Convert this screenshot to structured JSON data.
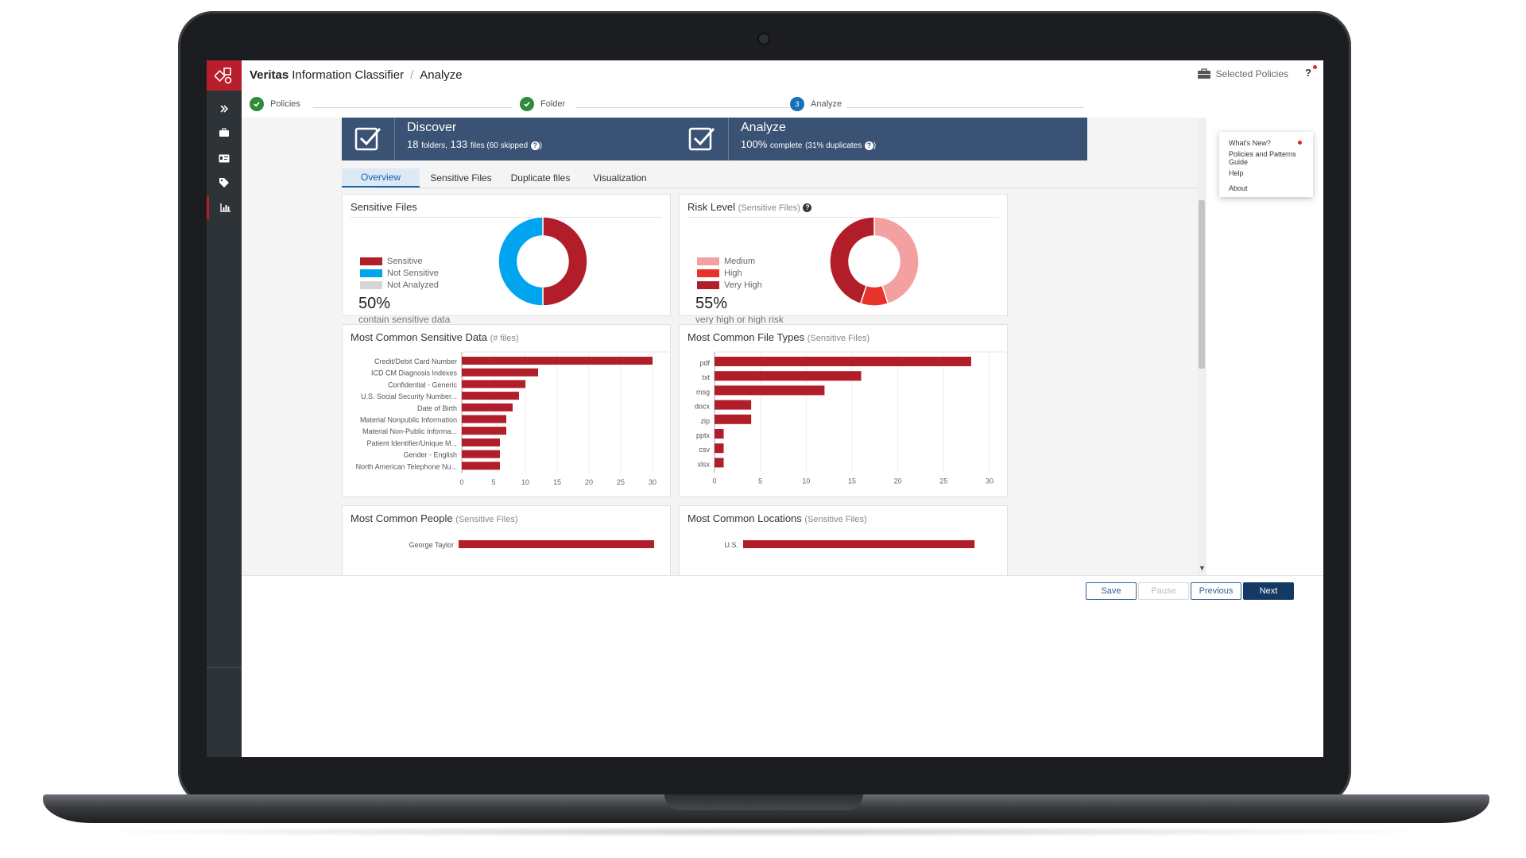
{
  "app": {
    "brand": "Veritas",
    "product": "Information Classifier",
    "breadcrumb_sep": "/",
    "page": "Analyze",
    "selected_policies": "Selected Policies",
    "help_glyph": "?"
  },
  "stepper": {
    "steps": [
      {
        "label": "Policies",
        "state": "done"
      },
      {
        "label": "Folder",
        "state": "done"
      },
      {
        "label": "Analyze",
        "state": "current",
        "number": "3"
      }
    ]
  },
  "help_menu": {
    "items": [
      "What's New?",
      "Policies and Patterns Guide",
      "Help",
      "About"
    ]
  },
  "discover": {
    "title": "Discover",
    "folders": "18",
    "folders_label": "folders,",
    "files": "133",
    "files_label": "files (60 skipped",
    "q": "?",
    "close": ")"
  },
  "analyze_card": {
    "title": "Analyze",
    "percent": "100%",
    "complete_label": "complete",
    "dup_label": "(31% duplicates",
    "q": "?",
    "close": ")"
  },
  "tabs": [
    "Overview",
    "Sensitive Files",
    "Duplicate files",
    "Visualization"
  ],
  "panels": {
    "sensitive": {
      "title": "Sensitive Files",
      "legend": [
        "Sensitive",
        "Not Sensitive",
        "Not Analyzed"
      ],
      "pct": "50%",
      "caption": "contain sensitive data"
    },
    "risk": {
      "title": "Risk Level",
      "subtitle": "(Sensitive Files)",
      "q": "?",
      "legend": [
        "Medium",
        "High",
        "Very High"
      ],
      "pct": "55%",
      "caption": "very high or high risk"
    },
    "common_data": {
      "title": "Most Common Sensitive Data",
      "subtitle": "(# files)"
    },
    "file_types": {
      "title": "Most Common File Types",
      "subtitle": "(Sensitive Files)"
    },
    "people": {
      "title": "Most Common People",
      "subtitle": "(Sensitive Files)"
    },
    "locations": {
      "title": "Most Common Locations",
      "subtitle": "(Sensitive Files)"
    }
  },
  "footer": {
    "save": "Save",
    "pause": "Pause",
    "previous": "Previous",
    "next": "Next"
  },
  "colors": {
    "dark_red": "#b11d28",
    "blue": "#00a4ef",
    "grey": "#d5d5d5",
    "medium": "#f2a0a0",
    "high": "#e8332c",
    "nav": "#2e3338",
    "card": "#3a5274"
  },
  "icons": {
    "nav": [
      "expand-icon",
      "briefcase-icon",
      "id-card-icon",
      "tags-icon",
      "bar-chart-icon"
    ],
    "card": "checkbox-icon"
  },
  "chart_data": [
    {
      "type": "pie",
      "title": "Sensitive Files",
      "categories": [
        "Sensitive",
        "Not Sensitive",
        "Not Analyzed"
      ],
      "values": [
        50,
        50,
        0
      ],
      "colors": [
        "#b11d28",
        "#00a4ef",
        "#d5d5d5"
      ]
    },
    {
      "type": "pie",
      "title": "Risk Level",
      "categories": [
        "Medium",
        "High",
        "Very High"
      ],
      "values": [
        45,
        10,
        45
      ],
      "colors": [
        "#f2a0a0",
        "#e8332c",
        "#b11d28"
      ]
    },
    {
      "type": "bar",
      "title": "Most Common Sensitive Data",
      "categories": [
        "Credit/Debit Card Number",
        "ICD CM Diagnosis Indexes",
        "Confidential - Generic",
        "U.S. Social Security Number...",
        "Date of Birth",
        "Material Nonpublic Information",
        "Material Non-Public Informa...",
        "Patient Identifier/Unique M...",
        "Gender - English",
        "North American Telephone Nu..."
      ],
      "values": [
        30,
        12,
        10,
        9,
        8,
        7,
        7,
        6,
        6,
        6
      ],
      "xlim": [
        0,
        30
      ],
      "xticks": [
        0,
        5,
        10,
        15,
        20,
        25,
        30
      ]
    },
    {
      "type": "bar",
      "title": "Most Common File Types",
      "categories": [
        "pdf",
        "txt",
        "msg",
        "docx",
        "zip",
        "pptx",
        "csv",
        "xlsx"
      ],
      "values": [
        28,
        16,
        12,
        4,
        4,
        1,
        1,
        1
      ],
      "xlim": [
        0,
        30
      ],
      "xticks": [
        0,
        5,
        10,
        15,
        20,
        25,
        30
      ]
    },
    {
      "type": "bar",
      "title": "Most Common People",
      "categories": [
        "George Taylor"
      ],
      "values": [
        30
      ],
      "xlim": [
        0,
        30
      ]
    },
    {
      "type": "bar",
      "title": "Most Common Locations",
      "categories": [
        "U.S."
      ],
      "values": [
        28
      ],
      "xlim": [
        0,
        30
      ]
    }
  ]
}
